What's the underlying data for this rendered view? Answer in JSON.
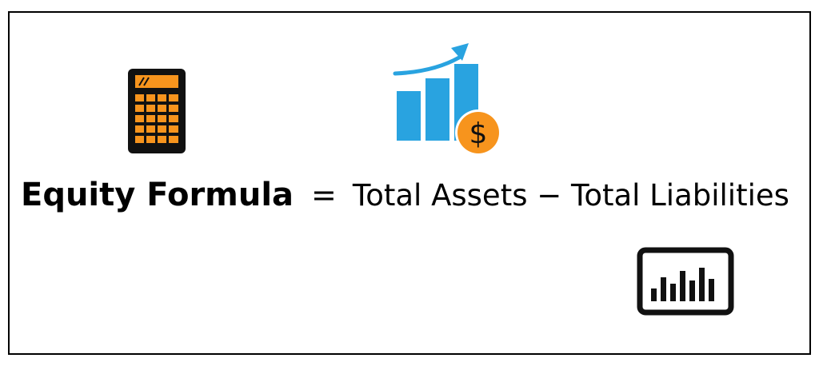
{
  "formula": {
    "lhs": "Equity Formula",
    "equals": "=",
    "rhs": "Total Assets − Total Liabilities"
  },
  "icons": {
    "calculator": "calculator-icon",
    "growth": "growth-chart-dollar-icon",
    "monitor": "bar-chart-monitor-icon"
  },
  "colors": {
    "calculator_body": "#111111",
    "calculator_keys": "#f7941d",
    "bars_blue": "#29a3e0",
    "dollar_orange": "#f7941d",
    "monitor": "#111111"
  }
}
